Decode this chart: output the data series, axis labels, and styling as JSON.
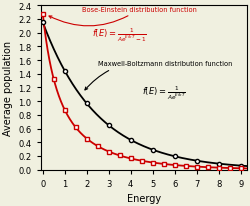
{
  "title": "",
  "xlabel": "Energy",
  "ylabel": "Average population",
  "xlim": [
    -0.1,
    9.3
  ],
  "ylim": [
    0,
    2.4
  ],
  "xticks": [
    0,
    1,
    2,
    3,
    4,
    5,
    6,
    7,
    8,
    9
  ],
  "yticks": [
    0.0,
    0.2,
    0.4,
    0.6,
    0.8,
    1.0,
    1.2,
    1.4,
    1.6,
    1.8,
    2.0,
    2.2,
    2.4
  ],
  "A_mb": 0.465,
  "A_be": 0.465,
  "kT_mb": 1.5,
  "kT_be": 1.5,
  "be_color": "#cc0000",
  "mb_color": "#000000",
  "bg_color": "#f0f0e0",
  "marker_points_mb": [
    0,
    1,
    2,
    3,
    4,
    5,
    6,
    7,
    8,
    9
  ],
  "marker_points_be": [
    0,
    0.5,
    1,
    1.5,
    2,
    2.5,
    3,
    3.5,
    4,
    4.5,
    5,
    5.5,
    6,
    6.5,
    7,
    7.5,
    8,
    8.5,
    9
  ]
}
